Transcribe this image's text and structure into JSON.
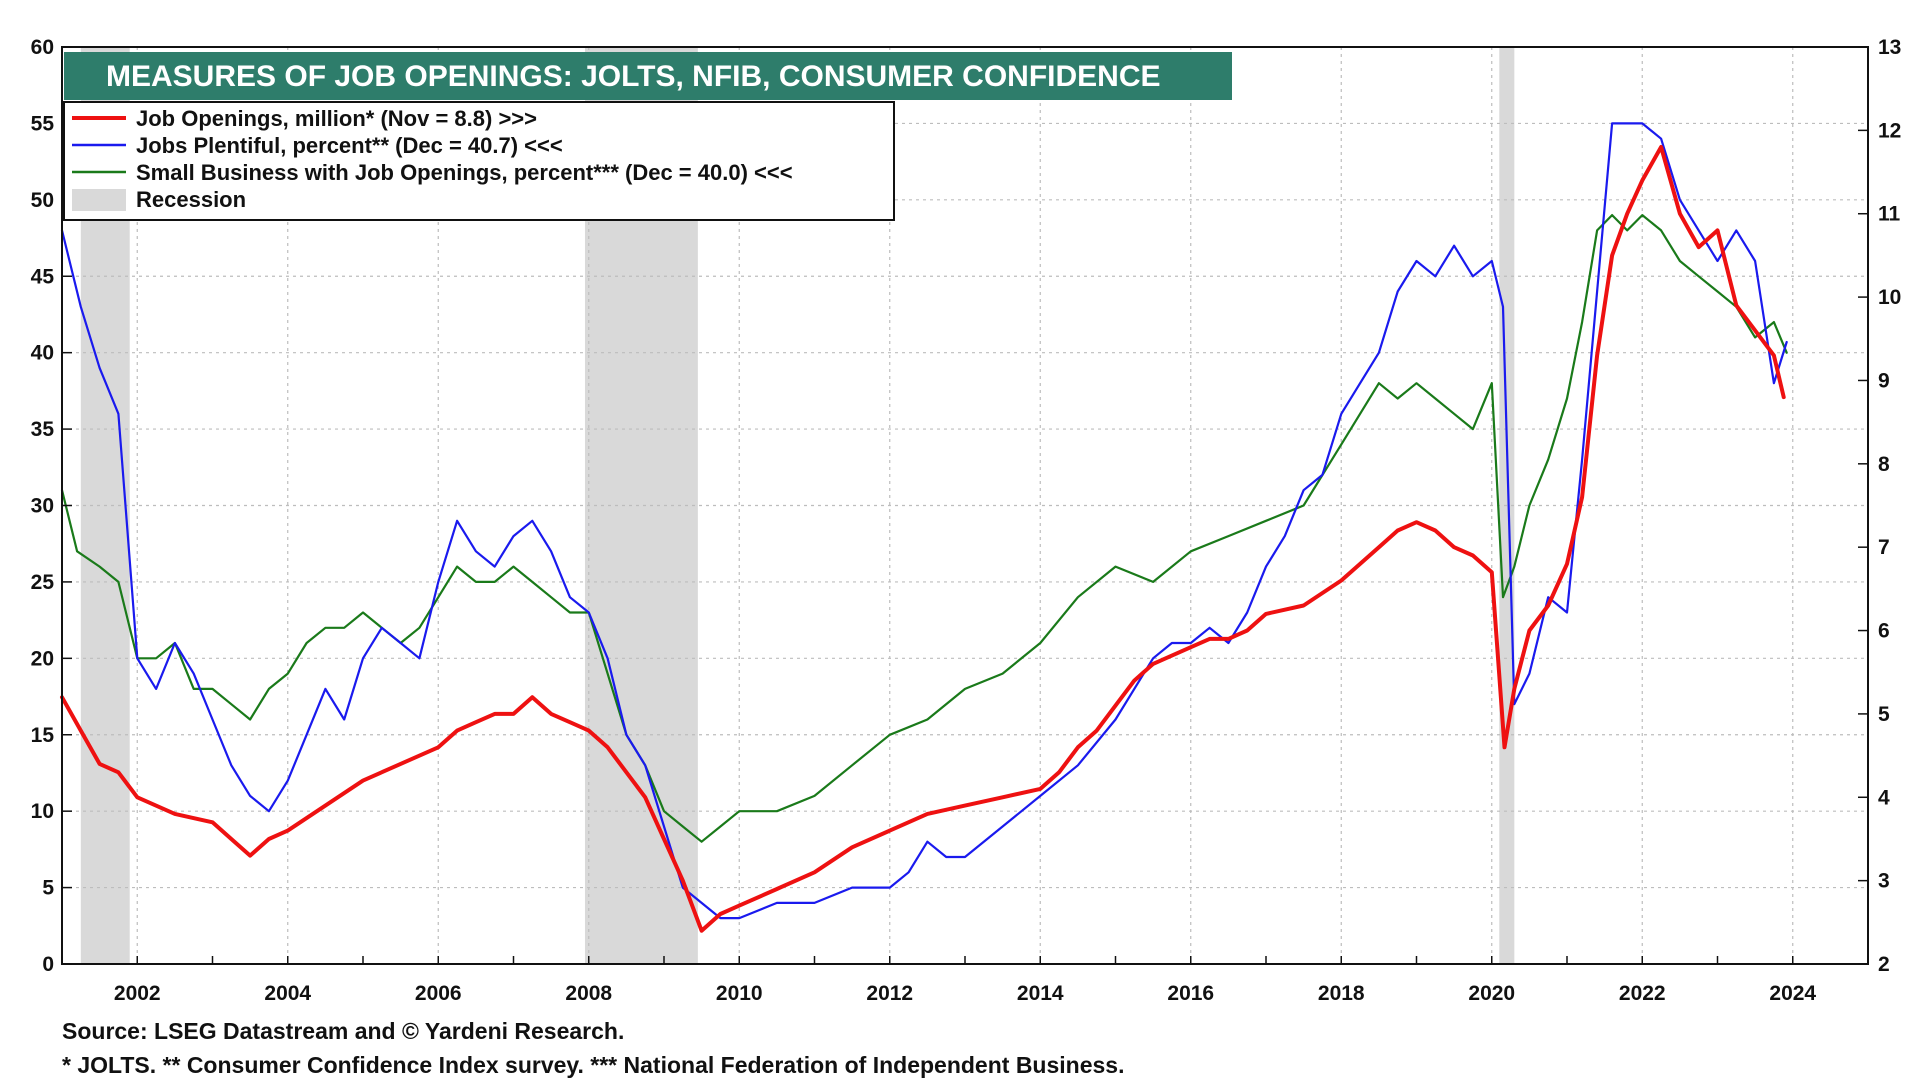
{
  "title": "MEASURES OF JOB OPENINGS: JOLTS, NFIB, CONSUMER CONFIDENCE",
  "footer": {
    "source": "Source: LSEG Datastream and © Yardeni Research.",
    "notes": "* JOLTS.   ** Consumer Confidence Index survey.   *** National Federation of Independent Business."
  },
  "colors": {
    "title_bg": "#2e7d6b",
    "jolts": "#ee1111",
    "jobs_plentiful": "#1a1aee",
    "nfib": "#1a7a1a",
    "recession": "#d9d9d9"
  },
  "chart_data": {
    "type": "line",
    "x_ticks": [
      "2002",
      "2004",
      "2006",
      "2008",
      "2010",
      "2012",
      "2014",
      "2016",
      "2018",
      "2020",
      "2022",
      "2024"
    ],
    "x_range": [
      2001.0,
      2025.0
    ],
    "y_left": {
      "ticks": [
        "0",
        "5",
        "10",
        "15",
        "20",
        "25",
        "30",
        "35",
        "40",
        "45",
        "50",
        "55",
        "60"
      ],
      "range": [
        0,
        60
      ]
    },
    "y_right": {
      "ticks": [
        "2",
        "3",
        "4",
        "5",
        "6",
        "7",
        "8",
        "9",
        "10",
        "11",
        "12",
        "13"
      ],
      "range": [
        2,
        13
      ]
    },
    "legend": [
      {
        "label": "Job Openings, million* (Nov = 8.8) >>>",
        "kind": "line",
        "color": "#ee1111"
      },
      {
        "label": "Jobs Plentiful, percent** (Dec = 40.7) <<<",
        "kind": "line",
        "color": "#1a1aee"
      },
      {
        "label": "Small Business with Job Openings, percent*** (Dec = 40.0) <<<",
        "kind": "line",
        "color": "#1a7a1a"
      },
      {
        "label": "Recession",
        "kind": "box",
        "color": "#d9d9d9"
      }
    ],
    "recessions": [
      [
        2001.25,
        2001.9
      ],
      [
        2007.95,
        2009.45
      ],
      [
        2020.1,
        2020.3
      ]
    ],
    "series": [
      {
        "name": "Job Openings, million*",
        "axis": "right",
        "color": "#ee1111",
        "x": [
          2001.0,
          2001.25,
          2001.5,
          2001.75,
          2002.0,
          2002.5,
          2003.0,
          2003.25,
          2003.5,
          2003.75,
          2004.0,
          2004.5,
          2005.0,
          2005.5,
          2006.0,
          2006.25,
          2006.5,
          2006.75,
          2007.0,
          2007.25,
          2007.5,
          2007.75,
          2008.0,
          2008.25,
          2008.5,
          2008.75,
          2009.0,
          2009.25,
          2009.5,
          2009.75,
          2010.0,
          2010.5,
          2011.0,
          2011.5,
          2012.0,
          2012.5,
          2013.0,
          2013.5,
          2014.0,
          2014.25,
          2014.5,
          2014.75,
          2015.0,
          2015.25,
          2015.5,
          2015.75,
          2016.0,
          2016.25,
          2016.5,
          2016.75,
          2017.0,
          2017.5,
          2018.0,
          2018.25,
          2018.5,
          2018.75,
          2019.0,
          2019.25,
          2019.5,
          2019.75,
          2020.0,
          2020.17,
          2020.3,
          2020.5,
          2020.75,
          2021.0,
          2021.2,
          2021.4,
          2021.6,
          2021.8,
          2022.0,
          2022.25,
          2022.5,
          2022.75,
          2023.0,
          2023.25,
          2023.5,
          2023.75,
          2023.88
        ],
        "y": [
          5.2,
          4.8,
          4.4,
          4.3,
          4.0,
          3.8,
          3.7,
          3.5,
          3.3,
          3.5,
          3.6,
          3.9,
          4.2,
          4.4,
          4.6,
          4.8,
          4.9,
          5.0,
          5.0,
          5.2,
          5.0,
          4.9,
          4.8,
          4.6,
          4.3,
          4.0,
          3.5,
          3.0,
          2.4,
          2.6,
          2.7,
          2.9,
          3.1,
          3.4,
          3.6,
          3.8,
          3.9,
          4.0,
          4.1,
          4.3,
          4.6,
          4.8,
          5.1,
          5.4,
          5.6,
          5.7,
          5.8,
          5.9,
          5.9,
          6.0,
          6.2,
          6.3,
          6.6,
          6.8,
          7.0,
          7.2,
          7.3,
          7.2,
          7.0,
          6.9,
          6.7,
          4.6,
          5.3,
          6.0,
          6.3,
          6.8,
          7.6,
          9.3,
          10.5,
          11.0,
          11.4,
          11.8,
          11.0,
          10.6,
          10.8,
          9.9,
          9.6,
          9.3,
          8.8
        ]
      },
      {
        "name": "Jobs Plentiful, percent**",
        "axis": "left",
        "color": "#1a1aee",
        "x": [
          2001.0,
          2001.25,
          2001.5,
          2001.75,
          2002.0,
          2002.25,
          2002.5,
          2002.75,
          2003.0,
          2003.25,
          2003.5,
          2003.75,
          2004.0,
          2004.25,
          2004.5,
          2004.75,
          2005.0,
          2005.25,
          2005.5,
          2005.75,
          2006.0,
          2006.25,
          2006.5,
          2006.75,
          2007.0,
          2007.25,
          2007.5,
          2007.75,
          2008.0,
          2008.25,
          2008.5,
          2008.75,
          2009.0,
          2009.25,
          2009.5,
          2009.75,
          2010.0,
          2010.5,
          2011.0,
          2011.5,
          2012.0,
          2012.25,
          2012.5,
          2012.75,
          2013.0,
          2013.5,
          2014.0,
          2014.5,
          2015.0,
          2015.25,
          2015.5,
          2015.75,
          2016.0,
          2016.25,
          2016.5,
          2016.75,
          2017.0,
          2017.25,
          2017.5,
          2017.75,
          2018.0,
          2018.25,
          2018.5,
          2018.75,
          2019.0,
          2019.25,
          2019.5,
          2019.75,
          2020.0,
          2020.15,
          2020.3,
          2020.5,
          2020.75,
          2021.0,
          2021.2,
          2021.4,
          2021.6,
          2021.8,
          2022.0,
          2022.25,
          2022.5,
          2022.75,
          2023.0,
          2023.25,
          2023.5,
          2023.75,
          2023.92
        ],
        "y": [
          48,
          43,
          39,
          36,
          20,
          18,
          21,
          19,
          16,
          13,
          11,
          10,
          12,
          15,
          18,
          16,
          20,
          22,
          21,
          20,
          25,
          29,
          27,
          26,
          28,
          29,
          27,
          24,
          23,
          20,
          15,
          13,
          9,
          5,
          4,
          3,
          3,
          4,
          4,
          5,
          5,
          6,
          8,
          7,
          7,
          9,
          11,
          13,
          16,
          18,
          20,
          21,
          21,
          22,
          21,
          23,
          26,
          28,
          31,
          32,
          36,
          38,
          40,
          44,
          46,
          45,
          47,
          45,
          46,
          43,
          17,
          19,
          24,
          23,
          33,
          44,
          55,
          55,
          55,
          54,
          50,
          48,
          46,
          48,
          46,
          38,
          40.7
        ]
      },
      {
        "name": "Small Business with Job Openings, percent***",
        "axis": "left",
        "color": "#1a7a1a",
        "x": [
          2001.0,
          2001.2,
          2001.5,
          2001.75,
          2002.0,
          2002.25,
          2002.5,
          2002.75,
          2003.0,
          2003.25,
          2003.5,
          2003.75,
          2004.0,
          2004.25,
          2004.5,
          2004.75,
          2005.0,
          2005.25,
          2005.5,
          2005.75,
          2006.0,
          2006.25,
          2006.5,
          2006.75,
          2007.0,
          2007.25,
          2007.5,
          2007.75,
          2008.0,
          2008.25,
          2008.5,
          2008.75,
          2009.0,
          2009.25,
          2009.5,
          2009.75,
          2010.0,
          2010.5,
          2011.0,
          2011.5,
          2012.0,
          2012.5,
          2013.0,
          2013.5,
          2014.0,
          2014.5,
          2015.0,
          2015.5,
          2016.0,
          2016.5,
          2017.0,
          2017.5,
          2018.0,
          2018.25,
          2018.5,
          2018.75,
          2019.0,
          2019.25,
          2019.5,
          2019.75,
          2020.0,
          2020.15,
          2020.3,
          2020.5,
          2020.75,
          2021.0,
          2021.2,
          2021.4,
          2021.6,
          2021.8,
          2022.0,
          2022.25,
          2022.5,
          2022.75,
          2023.0,
          2023.25,
          2023.5,
          2023.75,
          2023.92
        ],
        "y": [
          31,
          27,
          26,
          25,
          20,
          20,
          21,
          18,
          18,
          17,
          16,
          18,
          19,
          21,
          22,
          22,
          23,
          22,
          21,
          22,
          24,
          26,
          25,
          25,
          26,
          25,
          24,
          23,
          23,
          19,
          15,
          13,
          10,
          9,
          8,
          9,
          10,
          10,
          11,
          13,
          15,
          16,
          18,
          19,
          21,
          24,
          26,
          25,
          27,
          28,
          29,
          30,
          34,
          36,
          38,
          37,
          38,
          37,
          36,
          35,
          38,
          24,
          26,
          30,
          33,
          37,
          42,
          48,
          49,
          48,
          49,
          48,
          46,
          45,
          44,
          43,
          41,
          42,
          40
        ]
      }
    ]
  }
}
